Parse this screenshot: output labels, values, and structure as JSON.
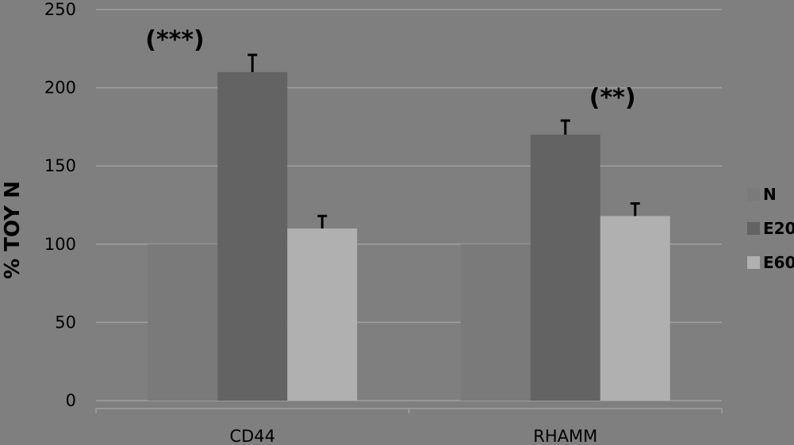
{
  "chart_data": {
    "type": "bar",
    "categories": [
      "CD44",
      "RHAMM"
    ],
    "series": [
      {
        "name": "N",
        "values": [
          100,
          100
        ],
        "errors": [
          0,
          0
        ],
        "color": "#7a7a7a"
      },
      {
        "name": "E20",
        "values": [
          210,
          170
        ],
        "errors": [
          11,
          9
        ],
        "color": "#636363"
      },
      {
        "name": "E60",
        "values": [
          110,
          118
        ],
        "errors": [
          8,
          8
        ],
        "color": "#b0b0b0"
      }
    ],
    "annotations": [
      {
        "category": "CD44",
        "text": "(***)"
      },
      {
        "category": "RHAMM",
        "text": "(**)"
      }
    ],
    "ylabel": "% TOY N",
    "xlabel": "",
    "title": "",
    "ylim": [
      0,
      250
    ],
    "yticks": [
      0,
      50,
      100,
      150,
      200,
      250
    ],
    "grid": true,
    "legend_position": "right",
    "colors": {
      "background": "#7f7f7f",
      "grid": "#a0a0a0",
      "error_bar": "#000000"
    }
  }
}
